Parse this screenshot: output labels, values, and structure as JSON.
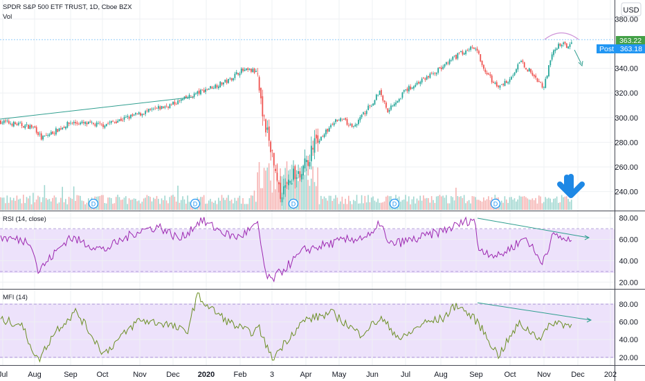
{
  "header": {
    "symbol_title": "SPDR S&P 500 ETF TRUST, 1D, Cboe BZX",
    "vol_label": "Vol",
    "currency": "USD"
  },
  "price_tags": {
    "last": "363.22",
    "post_label": "Post",
    "post": "363.18"
  },
  "rsi_label": "RSI (14, close)",
  "mfi_label": "MFI (14)",
  "time_axis": [
    "Jul",
    "Aug",
    "Sep",
    "Oct",
    "Nov",
    "Dec",
    "2020",
    "Feb",
    "3",
    "Apr",
    "May",
    "Jun",
    "Jul",
    "Aug",
    "Sep",
    "Oct",
    "Nov",
    "Dec",
    "202"
  ],
  "dividend_marker": "D",
  "colors": {
    "up": "#26a69a",
    "down": "#ef5350",
    "rsi_line": "#9c27b0",
    "mfi_line": "#6b8e23",
    "band_fill": "#ede2fb",
    "trend_line": "#2e9e8f",
    "arrow_blue": "#1e88e5",
    "post_tag": "#2196f3",
    "last_tag": "#43a047"
  },
  "chart_data": [
    {
      "type": "candlestick",
      "title": "SPDR S&P 500 ETF TRUST, 1D, Cboe BZX",
      "ylim": [
        228,
        392
      ],
      "y_ticks": [
        240,
        260,
        280,
        300,
        320,
        340,
        363.22,
        380
      ],
      "grid": true,
      "price_anchors": {
        "months": [
          "Jul 2019",
          "Aug 2019",
          "Sep 2019",
          "Oct 2019",
          "Nov 2019",
          "Dec 2019",
          "Jan 2020",
          "Feb 2020",
          "Mar 2020",
          "Apr 2020",
          "May 2020",
          "Jun 2020",
          "Jul 2020",
          "Aug 2020",
          "Sep 2020",
          "Oct 2020",
          "Nov 2020"
        ],
        "close": [
          297,
          292,
          296,
          294,
          303,
          311,
          323,
          338,
          255,
          285,
          300,
          312,
          322,
          340,
          348,
          332,
          362
        ]
      }
    },
    {
      "type": "line",
      "title": "RSI (14, close)",
      "ylim": [
        15,
        85
      ],
      "y_ticks": [
        20,
        40,
        60,
        80
      ],
      "band": [
        30,
        70
      ]
    },
    {
      "type": "line",
      "title": "MFI (14)",
      "ylim": [
        12,
        95
      ],
      "y_ticks": [
        20,
        40,
        60,
        80
      ],
      "band": [
        20,
        80
      ]
    }
  ]
}
